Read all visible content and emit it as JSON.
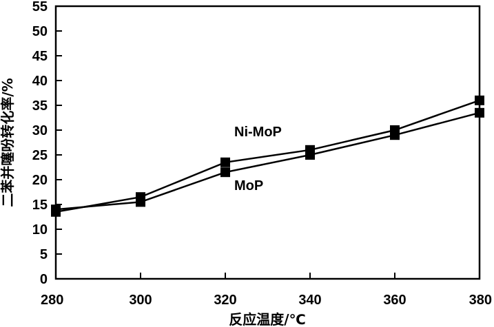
{
  "chart_data": {
    "type": "line",
    "title": "",
    "xlabel": "反应温度/℃",
    "ylabel": "二苯并噻吩转化率/%",
    "x": [
      280,
      300,
      320,
      340,
      360,
      380
    ],
    "x_ticks": [
      "280",
      "300",
      "320",
      "340",
      "360",
      "380"
    ],
    "xlim": [
      280,
      380
    ],
    "ylim": [
      0,
      55
    ],
    "y_ticks": [
      "0",
      "5",
      "10",
      "15",
      "20",
      "25",
      "30",
      "35",
      "40",
      "45",
      "50",
      "55"
    ],
    "grid": false,
    "series": [
      {
        "name": "Ni-MoP",
        "values": [
          13.5,
          16.5,
          23.5,
          26,
          30,
          36
        ],
        "color": "#000000",
        "marker": "square"
      },
      {
        "name": "MoP",
        "values": [
          14,
          15.5,
          21.5,
          25,
          29,
          33.5
        ],
        "color": "#000000",
        "marker": "square"
      }
    ]
  }
}
